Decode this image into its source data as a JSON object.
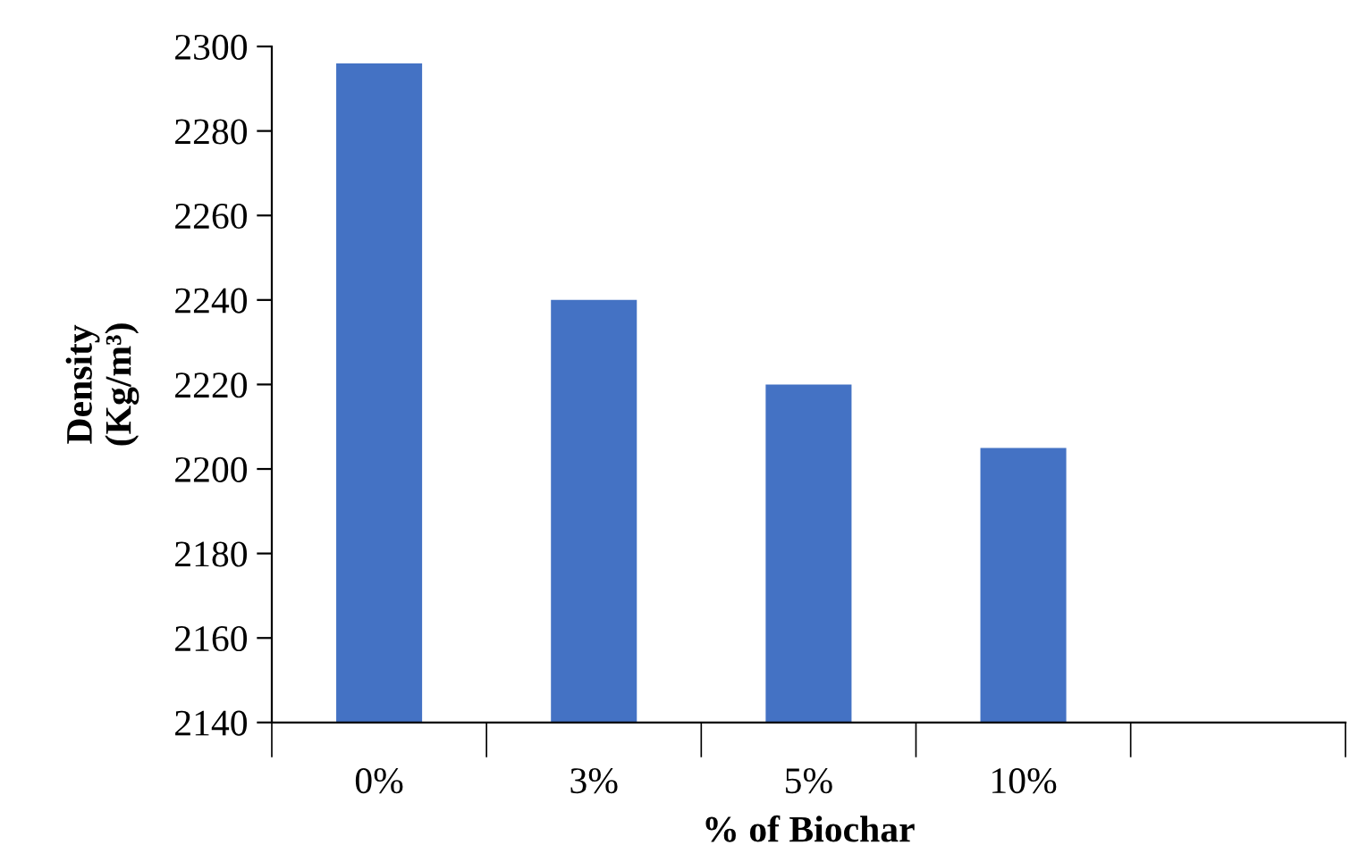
{
  "chart_data": {
    "type": "bar",
    "xlabel": "% of Biochar",
    "ylabel": "Density\n(Kg/m³)",
    "categories": [
      "0%",
      "3%",
      "5%",
      "10%",
      null
    ],
    "series": [
      {
        "color": "#4472c4",
        "values": [
          2296,
          2240,
          2220,
          2205,
          null
        ]
      }
    ],
    "ylim": [
      2140,
      2300
    ],
    "yticks": [
      2140,
      2160,
      2180,
      2200,
      2220,
      2240,
      2260,
      2280,
      2300
    ],
    "grid": false,
    "legend": false
  }
}
